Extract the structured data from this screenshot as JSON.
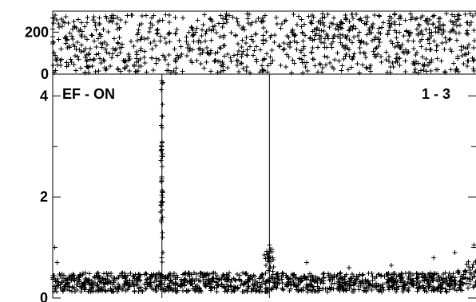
{
  "chart_data": [
    {
      "type": "scatter",
      "panel": "top",
      "marker": "+",
      "marker_color": "#000000",
      "xlim": [
        0,
        1
      ],
      "ylim": [
        0,
        300
      ],
      "ytick_values": [
        0,
        200
      ],
      "ytick_labels": [
        "0",
        "200"
      ],
      "title": "",
      "xlabel": "",
      "ylabel": "",
      "grid": false,
      "description": "dense noise band spanning ~0-290 across full x range",
      "series": [
        {
          "values": [
            {
              "x": 0.02,
              "y": 120
            },
            {
              "x": 0.05,
              "y": 250
            },
            {
              "x": 0.08,
              "y": 60
            },
            {
              "x": 0.11,
              "y": 190
            },
            {
              "x": 0.14,
              "y": 280
            },
            {
              "x": 0.17,
              "y": 30
            },
            {
              "x": 0.2,
              "y": 160
            },
            {
              "x": 0.23,
              "y": 220
            },
            {
              "x": 0.26,
              "y": 90
            },
            {
              "x": 0.29,
              "y": 270
            },
            {
              "x": 0.32,
              "y": 140
            },
            {
              "x": 0.35,
              "y": 50
            },
            {
              "x": 0.38,
              "y": 210
            },
            {
              "x": 0.41,
              "y": 260
            },
            {
              "x": 0.44,
              "y": 110
            },
            {
              "x": 0.47,
              "y": 180
            },
            {
              "x": 0.5,
              "y": 70
            },
            {
              "x": 0.53,
              "y": 240
            },
            {
              "x": 0.56,
              "y": 130
            },
            {
              "x": 0.59,
              "y": 200
            },
            {
              "x": 0.62,
              "y": 40
            },
            {
              "x": 0.65,
              "y": 285
            },
            {
              "x": 0.68,
              "y": 150
            },
            {
              "x": 0.71,
              "y": 230
            },
            {
              "x": 0.74,
              "y": 80
            },
            {
              "x": 0.77,
              "y": 170
            },
            {
              "x": 0.8,
              "y": 265
            },
            {
              "x": 0.83,
              "y": 100
            },
            {
              "x": 0.86,
              "y": 215
            },
            {
              "x": 0.89,
              "y": 55
            },
            {
              "x": 0.92,
              "y": 190
            },
            {
              "x": 0.95,
              "y": 275
            },
            {
              "x": 0.98,
              "y": 125
            }
          ]
        }
      ]
    },
    {
      "type": "scatter",
      "panel": "bottom",
      "marker": "+",
      "marker_color": "#000000",
      "xlim": [
        0,
        1
      ],
      "ylim": [
        0,
        4.4
      ],
      "ytick_values": [
        0,
        2,
        4
      ],
      "ytick_labels": [
        "0",
        "2",
        "4"
      ],
      "title": "",
      "xlabel": "",
      "ylabel": "",
      "grid": false,
      "annotations": [
        {
          "text": "EF - ON",
          "position": "top-left"
        },
        {
          "text": "1 - 3",
          "position": "top-right"
        }
      ],
      "vertical_lines_x": [
        0.258,
        0.512
      ],
      "description": "baseline around 0.2-0.6 with sharp spike near x=0.258 reaching above 4 and small bump near x=0.512",
      "series": [
        {
          "values": [
            {
              "x": 0.258,
              "y": 4.3
            },
            {
              "x": 0.258,
              "y": 3.6
            },
            {
              "x": 0.258,
              "y": 3.0
            },
            {
              "x": 0.257,
              "y": 2.3
            },
            {
              "x": 0.256,
              "y": 1.9
            },
            {
              "x": 0.255,
              "y": 1.7
            },
            {
              "x": 0.259,
              "y": 1.2
            },
            {
              "x": 0.26,
              "y": 0.9
            },
            {
              "x": 0.512,
              "y": 1.05
            },
            {
              "x": 0.5,
              "y": 0.85
            },
            {
              "x": 0.52,
              "y": 0.8
            },
            {
              "x": 0.005,
              "y": 1.0
            },
            {
              "x": 0.01,
              "y": 0.7
            },
            {
              "x": 0.6,
              "y": 0.7
            },
            {
              "x": 0.7,
              "y": 0.6
            },
            {
              "x": 0.8,
              "y": 0.65
            },
            {
              "x": 0.9,
              "y": 0.8
            },
            {
              "x": 0.95,
              "y": 0.9
            },
            {
              "x": 0.995,
              "y": 1.05
            }
          ]
        }
      ]
    }
  ]
}
